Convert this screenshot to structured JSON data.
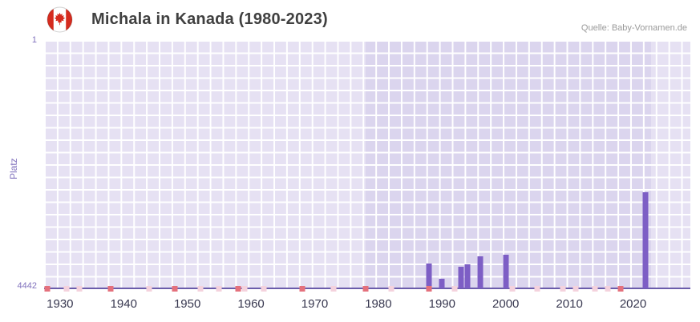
{
  "header": {
    "title": "Michala in Kanada (1980-2023)",
    "source": "Quelle: Baby-Vornamen.de",
    "flag_icon": "canada-flag"
  },
  "chart_data": {
    "type": "bar",
    "title": "Michala in Kanada (1980-2023)",
    "xlabel": "",
    "ylabel": "Platz",
    "y_axis": {
      "min": 1,
      "max": 4442,
      "inverted": true,
      "top_label": "1",
      "bottom_label": "4442"
    },
    "x_axis": {
      "min": 1927.5,
      "max": 2029,
      "ticks": [
        1930,
        1940,
        1950,
        1960,
        1970,
        1980,
        1990,
        2000,
        2010,
        2020
      ]
    },
    "grid": true,
    "legend_position": "none",
    "bars": [
      {
        "year": 1988,
        "rank": 4000
      },
      {
        "year": 1990,
        "rank": 4270
      },
      {
        "year": 1993,
        "rank": 4060
      },
      {
        "year": 1994,
        "rank": 4010
      },
      {
        "year": 1996,
        "rank": 3870
      },
      {
        "year": 2000,
        "rank": 3840
      },
      {
        "year": 2022,
        "rank": 2720
      }
    ],
    "no_data_regions": [
      {
        "from": 1927.5,
        "to": 1978
      },
      {
        "from": 2022.8,
        "to": 2029
      }
    ],
    "axis_markers": {
      "strong": [
        1928,
        1938,
        1948,
        1958,
        1968,
        1978,
        1988,
        2018
      ],
      "light": [
        1931,
        1933,
        1944,
        1952,
        1955,
        1959,
        1962,
        1973,
        1982,
        1992,
        2001,
        2005,
        2009,
        2011,
        2014,
        2016
      ]
    },
    "colors": {
      "bar": "#7d5ec5",
      "plot_bg": "#dbd5ee",
      "grid": "#ffffff",
      "axis_line": "#6b5cab",
      "marker_strong": "#e4707c",
      "marker_light": "#f4d2dd",
      "axis_text": "#8172bd",
      "tick_text": "#37374f"
    }
  }
}
